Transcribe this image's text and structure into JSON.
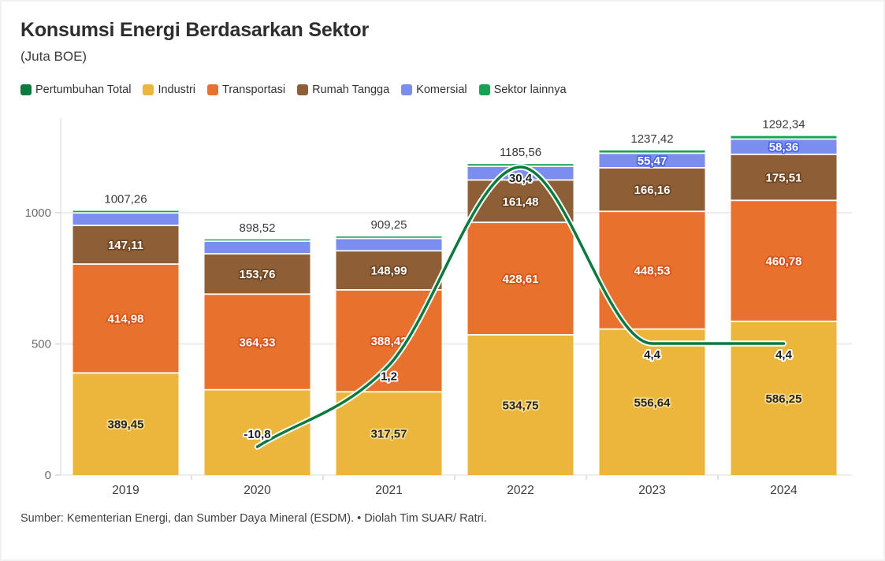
{
  "header": {
    "title": "Konsumsi Energi Berdasarkan Sektor",
    "subtitle": "(Juta BOE)"
  },
  "legend": {
    "items": [
      {
        "label": "Pertumbuhan Total",
        "color": "#0d7a40"
      },
      {
        "label": "Industri",
        "color": "#ecb63d"
      },
      {
        "label": "Transportasi",
        "color": "#e8712e"
      },
      {
        "label": "Rumah Tangga",
        "color": "#8e5f36"
      },
      {
        "label": "Komersial",
        "color": "#7b8def"
      },
      {
        "label": "Sektor lainnya",
        "color": "#15a356"
      }
    ]
  },
  "chart_data": {
    "type": "bar",
    "subtype": "stacked-bar-with-growth-line",
    "title": "Konsumsi Energi Berdasarkan Sektor",
    "units": "Juta BOE",
    "legend_position": "top",
    "categories": [
      "2019",
      "2020",
      "2021",
      "2022",
      "2023",
      "2024"
    ],
    "series": [
      {
        "name": "Industri",
        "color": "#ecb63d",
        "label_color": "#262626",
        "label_halo": "#f7dd92",
        "values": [
          389.45,
          325.43,
          317.57,
          534.75,
          556.64,
          586.25
        ],
        "labels": [
          "389,45",
          null,
          "317,57",
          "534,75",
          "556,64",
          "586,25"
        ]
      },
      {
        "name": "Transportasi",
        "color": "#e8712e",
        "label_color": "#ffffff",
        "label_halo": "#d1551c",
        "values": [
          414.98,
          364.33,
          388.42,
          428.61,
          448.53,
          460.78
        ],
        "labels": [
          "414,98",
          "364,33",
          "388,42",
          "428,61",
          "448,53",
          "460,78"
        ]
      },
      {
        "name": "Rumah Tangga",
        "color": "#8e5f36",
        "label_color": "#ffffff",
        "label_halo": "#6e4523",
        "values": [
          147.11,
          153.76,
          148.99,
          161.48,
          166.16,
          175.51
        ],
        "labels": [
          "147,11",
          "153,76",
          "148,99",
          "161,48",
          "166,16",
          "175,51"
        ]
      },
      {
        "name": "Komersial",
        "color": "#7b8def",
        "label_color": "#ffffff",
        "label_halo": "#4a63dd",
        "values": [
          47.8,
          48.0,
          47.0,
          52.0,
          55.47,
          58.36
        ],
        "labels": [
          null,
          null,
          null,
          null,
          "55,47",
          "58,36"
        ]
      },
      {
        "name": "Sektor lainnya",
        "color": "#15a356",
        "label_color": "#ffffff",
        "label_halo": "#0b7b3f",
        "values": [
          7.92,
          7.0,
          7.27,
          8.72,
          10.62,
          11.44
        ],
        "labels": [
          null,
          null,
          null,
          null,
          null,
          null
        ]
      }
    ],
    "totals": {
      "values": [
        1007.26,
        898.52,
        909.25,
        1185.56,
        1237.42,
        1292.34
      ],
      "labels": [
        "1007,26",
        "898,52",
        "909,25",
        "1185,56",
        "1237,42",
        "1292,34"
      ]
    },
    "line": {
      "name": "Pertumbuhan Total",
      "color": "#0c7a3e",
      "casing_color": "#ffffff",
      "values": [
        null,
        -10.8,
        1.2,
        30.4,
        4.4,
        4.4
      ],
      "labels": [
        null,
        "-10,8",
        "1,2",
        "30,4",
        "4,4",
        "4,4"
      ],
      "label_side": [
        null,
        "above",
        "below",
        "below",
        "below",
        "below"
      ]
    },
    "y_axis": {
      "ticks": [
        {
          "label": "0",
          "value": 0
        },
        {
          "label": "500",
          "value": 500
        },
        {
          "label": "1000",
          "value": 1000
        }
      ],
      "max": 1350,
      "grid": true
    },
    "x_axis": {
      "labels": [
        "2019",
        "2020",
        "2021",
        "2022",
        "2023",
        "2024"
      ]
    }
  },
  "footer": {
    "source": "Sumber: Kementerian Energi, dan Sumber Daya Mineral (ESDM). • Diolah Tim SUAR/ Ratri."
  }
}
